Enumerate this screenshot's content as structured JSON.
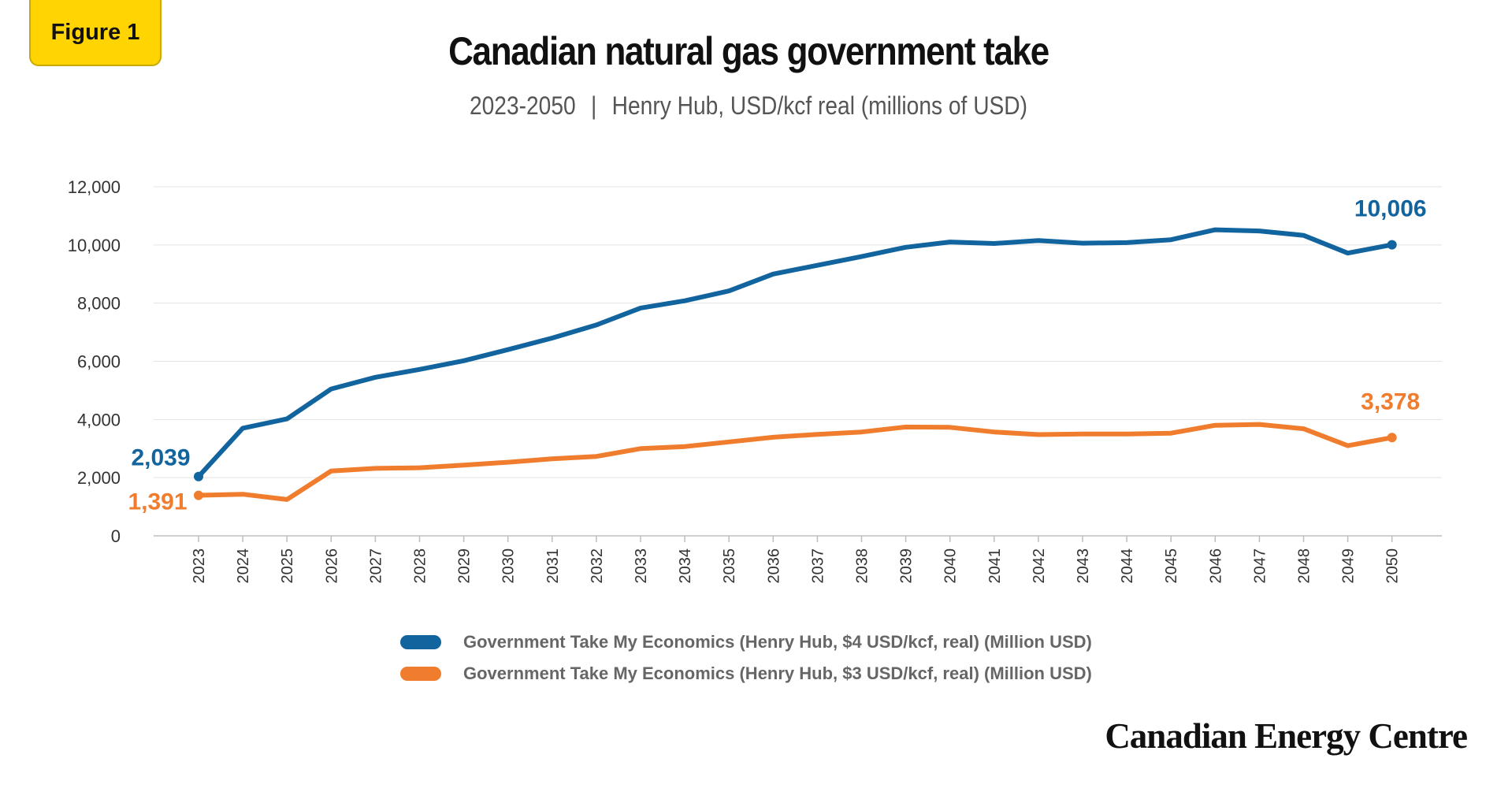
{
  "badge": {
    "label": "Figure 1"
  },
  "header": {
    "title": "Canadian natural gas government take",
    "subtitle_left": "2023-2050",
    "subtitle_sep": "|",
    "subtitle_right": "Henry Hub, USD/kcf real (millions of USD)"
  },
  "brand": {
    "name": "Canadian Energy Centre"
  },
  "chart_data": {
    "type": "line",
    "title": "Canadian natural gas government take",
    "subtitle": "2023-2050 | Henry Hub, USD/kcf real (millions of USD)",
    "xlabel": "",
    "ylabel": "",
    "ylim": [
      0,
      12000
    ],
    "yticks": [
      0,
      2000,
      4000,
      6000,
      8000,
      10000,
      12000
    ],
    "ytick_labels": [
      "0",
      "2,000",
      "4,000",
      "6,000",
      "8,000",
      "10,000",
      "12,000"
    ],
    "grid": "horizontal",
    "legend": "bottom",
    "x": [
      "2023",
      "2024",
      "2025",
      "2026",
      "2027",
      "2028",
      "2029",
      "2030",
      "2031",
      "2032",
      "2033",
      "2034",
      "2035",
      "2036",
      "2037",
      "2038",
      "2039",
      "2040",
      "2041",
      "2042",
      "2043",
      "2044",
      "2045",
      "2046",
      "2047",
      "2048",
      "2049",
      "2050"
    ],
    "series": [
      {
        "name": "Government Take My Economics (Henry Hub, $4 USD/kcf, real) (Million USD)",
        "color": "#12649e",
        "values": [
          2039,
          3700,
          4020,
          5050,
          5450,
          5720,
          6020,
          6400,
          6800,
          7250,
          7830,
          8080,
          8420,
          9000,
          9300,
          9600,
          9920,
          10100,
          10050,
          10150,
          10060,
          10080,
          10180,
          10520,
          10480,
          10330,
          9720,
          10006
        ],
        "end_labels": {
          "first": "2,039",
          "last": "10,006"
        }
      },
      {
        "name": "Government Take My Economics (Henry Hub, $3 USD/kcf, real) (Million USD)",
        "color": "#ef7d2d",
        "values": [
          1391,
          1430,
          1250,
          2230,
          2320,
          2340,
          2430,
          2530,
          2650,
          2730,
          3000,
          3070,
          3230,
          3390,
          3490,
          3570,
          3740,
          3730,
          3570,
          3480,
          3500,
          3500,
          3530,
          3800,
          3830,
          3680,
          3100,
          3378
        ],
        "end_labels": {
          "first": "1,391",
          "last": "3,378"
        }
      }
    ]
  }
}
